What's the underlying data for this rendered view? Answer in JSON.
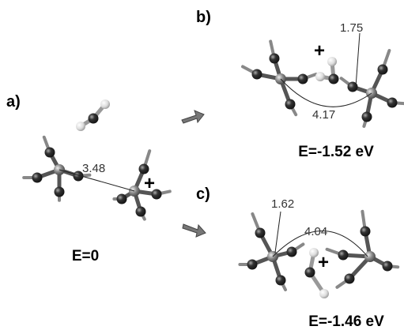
{
  "panels": [
    {
      "label": "a)",
      "energy": "E=0",
      "distances": [
        "3.48"
      ],
      "charge": "+"
    },
    {
      "label": "b)",
      "energy": "E=-1.52 eV",
      "distances": [
        "1.75",
        "4.17"
      ],
      "charge": "+"
    },
    {
      "label": "c)",
      "energy": "E=-1.46 eV",
      "distances": [
        "1.62",
        "4.04"
      ],
      "charge": "+"
    }
  ]
}
